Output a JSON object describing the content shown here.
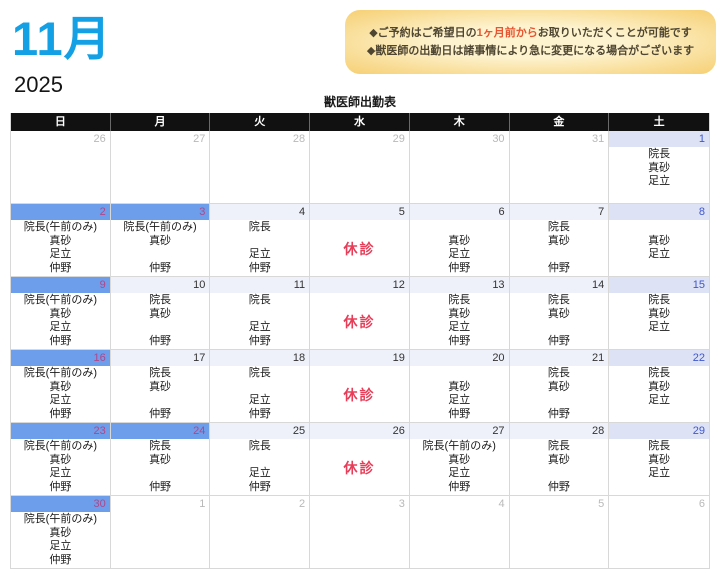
{
  "header": {
    "month_label": "11月",
    "year": "2025",
    "table_title": "獣医師出勤表",
    "notice": {
      "line1_pre": "◆ご予約はご希望日の",
      "line1_highlight": "1ヶ月前から",
      "line1_post": "お取りいただくことが可能です",
      "line2": "◆獣医師の出勤日は諸事情により急に変更になる場合がございます"
    }
  },
  "calendar": {
    "weekday_headers": [
      "日",
      "月",
      "火",
      "水",
      "木",
      "金",
      "土"
    ],
    "closed_label": "休診",
    "weeks": [
      [
        {
          "date": "26",
          "style": "adjacent",
          "lines": [
            "",
            "",
            "",
            ""
          ]
        },
        {
          "date": "27",
          "style": "adjacent",
          "lines": [
            "",
            "",
            "",
            ""
          ]
        },
        {
          "date": "28",
          "style": "adjacent",
          "lines": [
            "",
            "",
            "",
            ""
          ]
        },
        {
          "date": "29",
          "style": "adjacent",
          "lines": [
            "",
            "",
            "",
            ""
          ]
        },
        {
          "date": "30",
          "style": "adjacent",
          "lines": [
            "",
            "",
            "",
            ""
          ]
        },
        {
          "date": "31",
          "style": "adjacent",
          "lines": [
            "",
            "",
            "",
            ""
          ]
        },
        {
          "date": "1",
          "style": "saturday",
          "lines": [
            "院長",
            "真砂",
            "足立",
            ""
          ]
        }
      ],
      [
        {
          "date": "2",
          "style": "sunday",
          "lines": [
            "院長(午前のみ)",
            "真砂",
            "足立",
            "仲野"
          ]
        },
        {
          "date": "3",
          "style": "sunday",
          "lines": [
            "院長(午前のみ)",
            "真砂",
            "",
            "仲野"
          ]
        },
        {
          "date": "4",
          "style": "weekday",
          "lines": [
            "院長",
            "",
            "足立",
            "仲野"
          ]
        },
        {
          "date": "5",
          "style": "weekday",
          "closed": true
        },
        {
          "date": "6",
          "style": "weekday",
          "lines": [
            "",
            "真砂",
            "足立",
            "仲野"
          ]
        },
        {
          "date": "7",
          "style": "weekday",
          "lines": [
            "院長",
            "真砂",
            "",
            "仲野"
          ]
        },
        {
          "date": "8",
          "style": "saturday",
          "lines": [
            "",
            "真砂",
            "足立",
            ""
          ]
        }
      ],
      [
        {
          "date": "9",
          "style": "sunday",
          "lines": [
            "院長(午前のみ)",
            "真砂",
            "足立",
            "仲野"
          ]
        },
        {
          "date": "10",
          "style": "weekday",
          "lines": [
            "院長",
            "真砂",
            "",
            "仲野"
          ]
        },
        {
          "date": "11",
          "style": "weekday",
          "lines": [
            "院長",
            "",
            "足立",
            "仲野"
          ]
        },
        {
          "date": "12",
          "style": "weekday",
          "closed": true
        },
        {
          "date": "13",
          "style": "weekday",
          "lines": [
            "院長",
            "真砂",
            "足立",
            "仲野"
          ]
        },
        {
          "date": "14",
          "style": "weekday",
          "lines": [
            "院長",
            "真砂",
            "",
            "仲野"
          ]
        },
        {
          "date": "15",
          "style": "saturday",
          "lines": [
            "院長",
            "真砂",
            "足立",
            ""
          ]
        }
      ],
      [
        {
          "date": "16",
          "style": "sunday",
          "lines": [
            "院長(午前のみ)",
            "真砂",
            "足立",
            "仲野"
          ]
        },
        {
          "date": "17",
          "style": "weekday",
          "lines": [
            "院長",
            "真砂",
            "",
            "仲野"
          ]
        },
        {
          "date": "18",
          "style": "weekday",
          "lines": [
            "院長",
            "",
            "足立",
            "仲野"
          ]
        },
        {
          "date": "19",
          "style": "weekday",
          "closed": true
        },
        {
          "date": "20",
          "style": "weekday",
          "lines": [
            "",
            "真砂",
            "足立",
            "仲野"
          ]
        },
        {
          "date": "21",
          "style": "weekday",
          "lines": [
            "院長",
            "真砂",
            "",
            "仲野"
          ]
        },
        {
          "date": "22",
          "style": "saturday",
          "lines": [
            "院長",
            "真砂",
            "足立",
            ""
          ]
        }
      ],
      [
        {
          "date": "23",
          "style": "sunday",
          "lines": [
            "院長(午前のみ)",
            "真砂",
            "足立",
            "仲野"
          ]
        },
        {
          "date": "24",
          "style": "sunday",
          "lines": [
            "院長",
            "真砂",
            "",
            "仲野"
          ]
        },
        {
          "date": "25",
          "style": "weekday",
          "lines": [
            "院長",
            "",
            "足立",
            "仲野"
          ]
        },
        {
          "date": "26",
          "style": "weekday",
          "closed": true
        },
        {
          "date": "27",
          "style": "weekday",
          "lines": [
            "院長(午前のみ)",
            "真砂",
            "足立",
            "仲野"
          ]
        },
        {
          "date": "28",
          "style": "weekday",
          "lines": [
            "院長",
            "真砂",
            "",
            "仲野"
          ]
        },
        {
          "date": "29",
          "style": "saturday",
          "lines": [
            "院長",
            "真砂",
            "足立",
            ""
          ]
        }
      ],
      [
        {
          "date": "30",
          "style": "sunday",
          "lines": [
            "院長(午前のみ)",
            "真砂",
            "足立",
            "仲野"
          ]
        },
        {
          "date": "1",
          "style": "adjacent",
          "lines": [
            "",
            "",
            "",
            ""
          ]
        },
        {
          "date": "2",
          "style": "adjacent",
          "lines": [
            "",
            "",
            "",
            ""
          ]
        },
        {
          "date": "3",
          "style": "adjacent",
          "lines": [
            "",
            "",
            "",
            ""
          ]
        },
        {
          "date": "4",
          "style": "adjacent",
          "lines": [
            "",
            "",
            "",
            ""
          ]
        },
        {
          "date": "5",
          "style": "adjacent",
          "lines": [
            "",
            "",
            "",
            ""
          ]
        },
        {
          "date": "6",
          "style": "adjacent",
          "lines": [
            "",
            "",
            "",
            ""
          ]
        }
      ]
    ]
  },
  "colors": {
    "month_blue": "#14a0e4",
    "notice_bg_edge": "#f6cf72",
    "notice_bg_center": "#fdf3cf",
    "notice_text": "#4f4632",
    "notice_highlight": "#e85430",
    "header_bg": "#111111",
    "header_text": "#ffffff",
    "sunday_strip": "#6d9eeb",
    "sunday_date": "#b0478a",
    "saturday_strip": "#dde3f5",
    "saturday_date": "#3f57cf",
    "weekday_strip": "#eef1fa",
    "weekday_date": "#333333",
    "adjacent_date": "#b9b9b9",
    "closed_red": "#e83d58",
    "grid": "#d8d8d8"
  }
}
